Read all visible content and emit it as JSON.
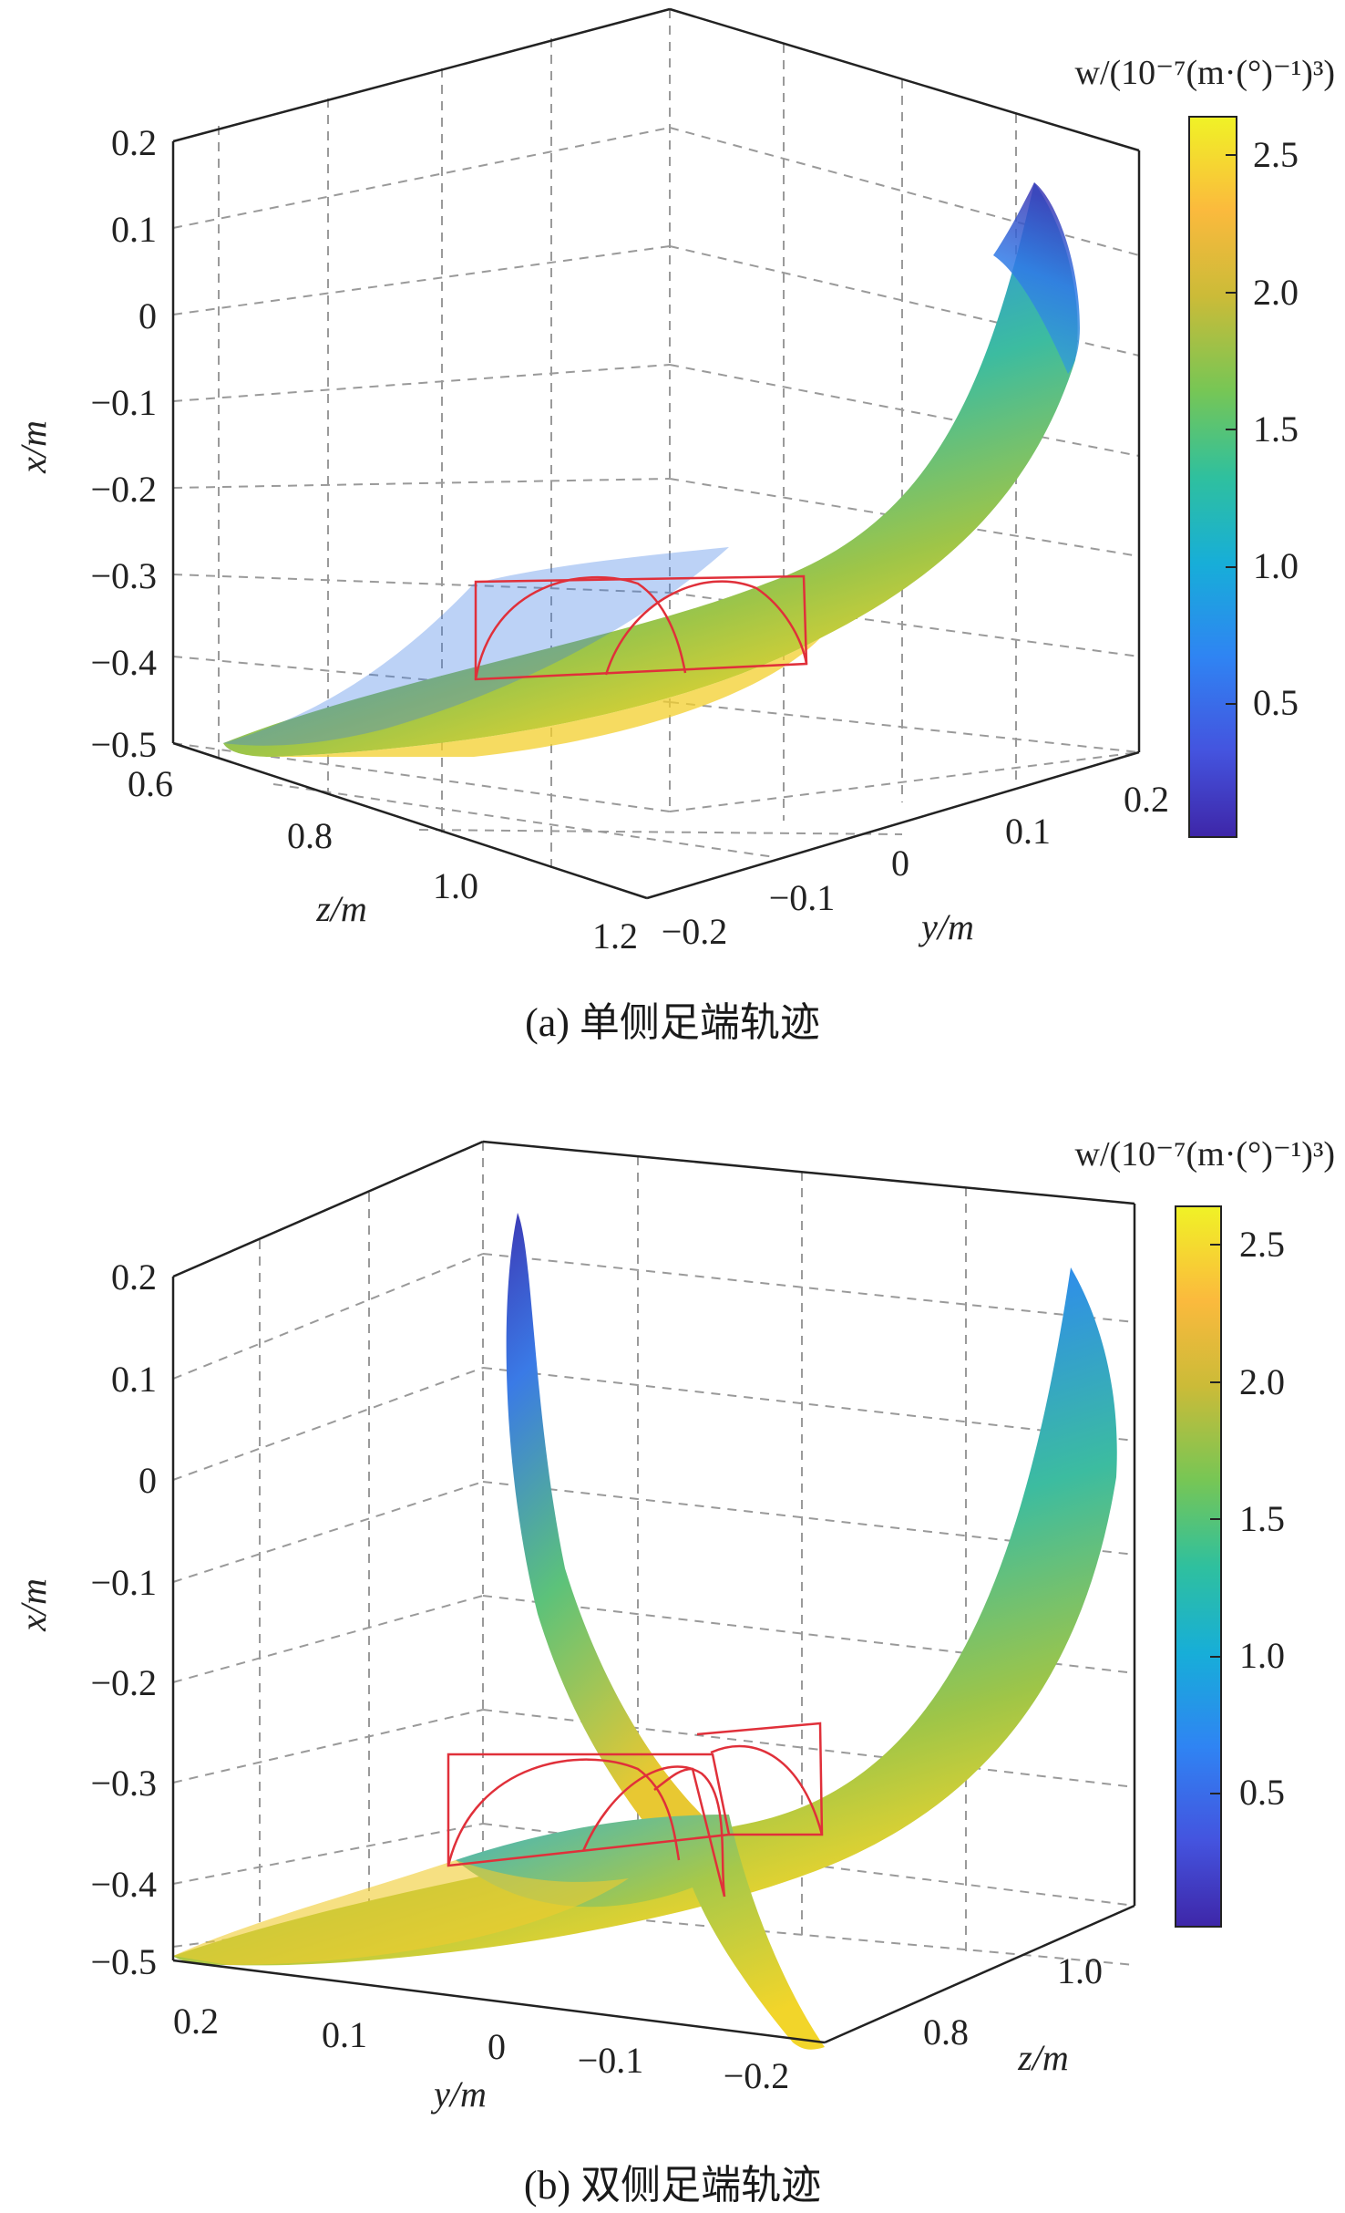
{
  "figures": [
    {
      "caption": "(a) 单侧足端轨迹",
      "colorbar": {
        "label": "w/(10⁻⁷(m·(°)⁻¹)³)",
        "ticks": [
          "0.5",
          "1.0",
          "1.5",
          "2.0",
          "2.5"
        ]
      }
    },
    {
      "caption": "(b) 双侧足端轨迹",
      "colorbar": {
        "label": "w/(10⁻⁷(m·(°)⁻¹)³)",
        "ticks": [
          "0.5",
          "1.0",
          "1.5",
          "2.0",
          "2.5"
        ]
      }
    }
  ],
  "chart_data": [
    {
      "type": "surface3d",
      "xlabel": "x/m",
      "ylabel": "y/m",
      "zlabel": "z/m",
      "x_ticks": [
        "0.2",
        "0.1",
        "0",
        "−0.1",
        "−0.2",
        "−0.3",
        "−0.4",
        "−0.5"
      ],
      "y_ticks": [
        "−0.2",
        "−0.1",
        "0",
        "0.1",
        "0.2"
      ],
      "z_ticks": [
        "0.6",
        "0.8",
        "1.0",
        "1.2"
      ],
      "xlim": [
        -0.5,
        0.2
      ],
      "ylim": [
        -0.2,
        0.2
      ],
      "zlim": [
        0.6,
        1.2
      ],
      "colorbar_range": [
        0.05,
        2.65
      ],
      "colormap": "parula",
      "surfaces": 1,
      "overlay_color": "#e0303a"
    },
    {
      "type": "surface3d",
      "xlabel": "x/m",
      "ylabel": "y/m",
      "zlabel": "z/m",
      "x_ticks": [
        "0.2",
        "0.1",
        "0",
        "−0.1",
        "−0.2",
        "−0.3",
        "−0.4",
        "−0.5"
      ],
      "y_ticks": [
        "0.2",
        "0.1",
        "0",
        "−0.1",
        "−0.2"
      ],
      "z_ticks": [
        "0.8",
        "1.0"
      ],
      "xlim": [
        -0.5,
        0.2
      ],
      "ylim": [
        -0.2,
        0.2
      ],
      "zlim": [
        0.6,
        1.2
      ],
      "colorbar_range": [
        0.05,
        2.65
      ],
      "colormap": "parula",
      "surfaces": 2,
      "overlay_color": "#e0303a"
    }
  ]
}
